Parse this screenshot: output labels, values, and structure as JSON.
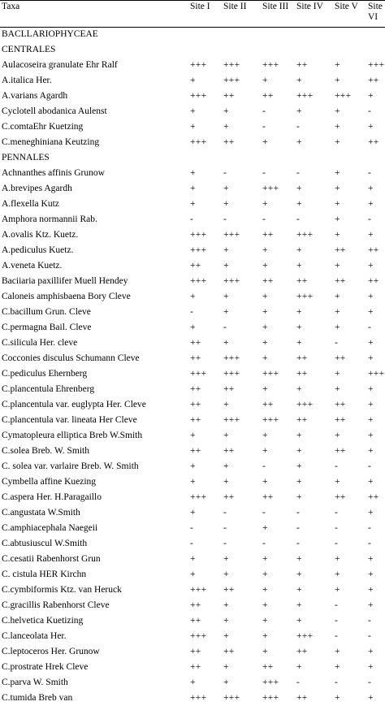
{
  "table": {
    "headers": [
      "Taxa",
      "Site I",
      "Site II",
      "Site III",
      "Site IV",
      "Site V",
      "Site VI"
    ],
    "rows": [
      {
        "taxon": "BACLLARIOPHYCEAE",
        "values": [
          "",
          "",
          "",
          "",
          "",
          ""
        ]
      },
      {
        "taxon": "CENTRALES",
        "values": [
          "",
          "",
          "",
          "",
          "",
          ""
        ]
      },
      {
        "taxon": "Aulacoseira  granulate Ehr  Ralf",
        "values": [
          "+++",
          "+++",
          "+++",
          "++",
          "+",
          "+++"
        ]
      },
      {
        "taxon": "A.italica Her.",
        "values": [
          "+",
          "+++",
          "+",
          "+",
          "+",
          "++"
        ]
      },
      {
        "taxon": "A.varians Agardh",
        "values": [
          "+++",
          "++",
          "++",
          "+++",
          "+++",
          "+"
        ]
      },
      {
        "taxon": "Cyclotell abodanica Aulenst",
        "values": [
          "+",
          "+",
          "-",
          "+",
          "+",
          "-"
        ]
      },
      {
        "taxon": "C.comtaEhr Kuetzing",
        "values": [
          "+",
          "+",
          "-",
          "-",
          "+",
          "+"
        ]
      },
      {
        "taxon": "C.meneghiniana Keutzing",
        "values": [
          "+++",
          "++",
          "+",
          "+",
          "+",
          "++"
        ]
      },
      {
        "taxon": "PENNALES",
        "values": [
          "",
          "",
          "",
          "",
          "",
          ""
        ]
      },
      {
        "taxon": "Achnanthes affinis Grunow",
        "values": [
          "+",
          "-",
          "-",
          "-",
          "+",
          "-"
        ]
      },
      {
        "taxon": "A.brevipes Agardh",
        "values": [
          "+",
          "+",
          "+++",
          "+",
          "+",
          "+"
        ]
      },
      {
        "taxon": "A.flexella  Kutz",
        "values": [
          "+",
          "+",
          "+",
          "+",
          "+",
          "+"
        ]
      },
      {
        "taxon": "Amphora normannii Rab.",
        "values": [
          "-",
          "-",
          "-",
          "-",
          "+",
          "-"
        ]
      },
      {
        "taxon": "A.ovalis Ktz. Kuetz.",
        "values": [
          "+++",
          "+++",
          "++",
          "+++",
          "+",
          "+"
        ]
      },
      {
        "taxon": "A.pediculus Kuetz.",
        "values": [
          "+++",
          "+",
          "+",
          "+",
          "++",
          "++"
        ]
      },
      {
        "taxon": "A.veneta Kuetz.",
        "values": [
          "++",
          "+",
          "+",
          "+",
          "+",
          "+"
        ]
      },
      {
        "taxon": "Baciiaria paxillifer Muell Hendey",
        "values": [
          "+++",
          "+++",
          "++",
          "++",
          "++",
          "++"
        ]
      },
      {
        "taxon": "Caloneis amphisbaena Bory Cleve",
        "values": [
          "+",
          "+",
          "+",
          "+++",
          "+",
          "+"
        ]
      },
      {
        "taxon": "C.bacillum  Grun. Cleve",
        "values": [
          "-",
          "+",
          "+",
          "+",
          "+",
          "+"
        ]
      },
      {
        "taxon": "C.permagna Bail. Cleve",
        "values": [
          "+",
          "-",
          "+",
          "+",
          "+",
          "-"
        ]
      },
      {
        "taxon": "C.silicula Her.  cleve",
        "values": [
          "++",
          "+",
          "+",
          "+",
          "-",
          "+"
        ]
      },
      {
        "taxon": "Cocconies disculus  Schumann Cleve",
        "values": [
          "++",
          "+++",
          "+",
          "++",
          "++",
          "+"
        ]
      },
      {
        "taxon": "C.pediculus  Ehernberg",
        "values": [
          "+++",
          "+++",
          "+++",
          "++",
          "+",
          "+++"
        ]
      },
      {
        "taxon": "C.plancentula Ehrenberg",
        "values": [
          "++",
          "++",
          "+",
          "+",
          "+",
          "+"
        ]
      },
      {
        "taxon": "C.plancentula  var. euglypta Her. Cleve",
        "values": [
          "++",
          "+",
          "++",
          "+++",
          "++",
          "+"
        ]
      },
      {
        "taxon": "C.plancentula  var. lineata Her Cleve",
        "values": [
          "++",
          "+++",
          "+++",
          "++",
          "++",
          "+"
        ]
      },
      {
        "taxon": "Cymatopleura elliptica Breb W.Smith",
        "values": [
          "+",
          "+",
          "+",
          "+",
          "+",
          "+"
        ]
      },
      {
        "taxon": "C.solea Breb. W. Smith",
        "values": [
          "++",
          "++",
          "+",
          "+",
          "++",
          "+"
        ]
      },
      {
        "taxon": "C. solea var. varlaire Breb. W. Smith",
        "values": [
          "+",
          "+",
          "-",
          "+",
          "-",
          "-"
        ]
      },
      {
        "taxon": "Cymbella affine Kuezing",
        "values": [
          "+",
          "+",
          "+",
          "+",
          "+",
          "+"
        ]
      },
      {
        "taxon": "C.aspera  Her. H.Paragaillo",
        "values": [
          "+++",
          "++",
          "++",
          "+",
          "++",
          "++"
        ]
      },
      {
        "taxon": "C.angustata  W.Smith",
        "values": [
          "+",
          "-",
          "-",
          "-",
          "-",
          "+"
        ]
      },
      {
        "taxon": "C.amphiacephala Naegeii",
        "values": [
          "-",
          "-",
          "+",
          "-",
          "-",
          "-"
        ]
      },
      {
        "taxon": "C.abtusiuscul W.Smith",
        "values": [
          "-",
          "-",
          "-",
          "-",
          "-",
          "-"
        ]
      },
      {
        "taxon": "C.cesatii  Rabenhorst  Grun",
        "values": [
          "+",
          "+",
          "+",
          "+",
          "+",
          "+"
        ]
      },
      {
        "taxon": "C. cistula  HER Kirchn",
        "values": [
          "+",
          "+",
          "+",
          "+",
          "+",
          "+"
        ]
      },
      {
        "taxon": "C.cymbiformis  Ktz.  van Heruck",
        "values": [
          "+++",
          "++",
          "+",
          "+",
          "+",
          "+"
        ]
      },
      {
        "taxon": "C.gracillis  Rabenhorst Cleve",
        "values": [
          "++",
          "+",
          "+",
          "+",
          "-",
          "+"
        ]
      },
      {
        "taxon": "C.helvetica  Kuetizing",
        "values": [
          "++",
          "+",
          "+",
          "+",
          "-",
          "-"
        ]
      },
      {
        "taxon": "C.lanceolata Her.",
        "values": [
          "+++",
          "+",
          "+",
          "+++",
          "-",
          "-"
        ]
      },
      {
        "taxon": "C.leptoceros  Her.  Grunow",
        "values": [
          "++",
          "++",
          "+",
          "++",
          "+",
          "+"
        ]
      },
      {
        "taxon": "C.prostrate Hrek Cleve",
        "values": [
          "++",
          "+",
          "++",
          "+",
          "+",
          "+"
        ]
      },
      {
        "taxon": "C.parva  W. Smith",
        "values": [
          "+",
          "+",
          "+++",
          "-",
          "-",
          "-"
        ]
      },
      {
        "taxon": "C.tumida Breb  van",
        "values": [
          "+++",
          "+++",
          "+++",
          "++",
          "+",
          "+"
        ]
      }
    ]
  }
}
